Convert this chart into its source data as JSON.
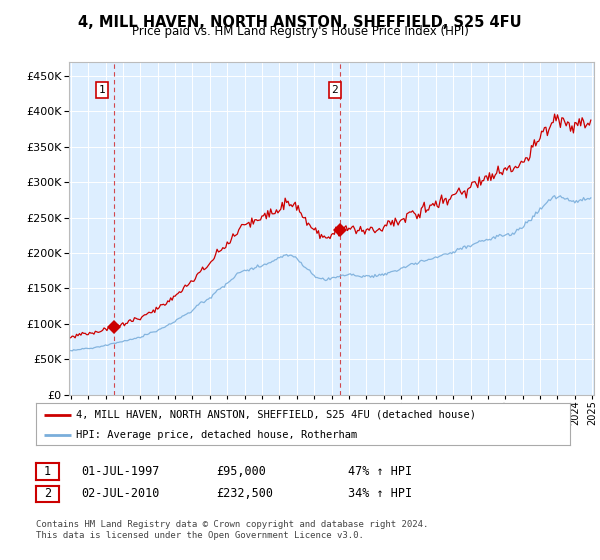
{
  "title": "4, MILL HAVEN, NORTH ANSTON, SHEFFIELD, S25 4FU",
  "subtitle": "Price paid vs. HM Land Registry's House Price Index (HPI)",
  "legend_line1": "4, MILL HAVEN, NORTH ANSTON, SHEFFIELD, S25 4FU (detached house)",
  "legend_line2": "HPI: Average price, detached house, Rotherham",
  "annotation1_label": "1",
  "annotation1_date": "01-JUL-1997",
  "annotation1_price": "£95,000",
  "annotation1_hpi": "47% ↑ HPI",
  "annotation2_label": "2",
  "annotation2_date": "02-JUL-2010",
  "annotation2_price": "£232,500",
  "annotation2_hpi": "34% ↑ HPI",
  "footer": "Contains HM Land Registry data © Crown copyright and database right 2024.\nThis data is licensed under the Open Government Licence v3.0.",
  "red_color": "#cc0000",
  "blue_color": "#7aaedb",
  "background_color": "#ddeeff",
  "ylim": [
    0,
    470000
  ],
  "yticks": [
    0,
    50000,
    100000,
    150000,
    200000,
    250000,
    300000,
    350000,
    400000,
    450000
  ],
  "purchase1_x": 1997.5,
  "purchase1_y": 95000,
  "purchase2_x": 2010.5,
  "purchase2_y": 232500,
  "xmin": 1995.0,
  "xmax": 2025.0
}
